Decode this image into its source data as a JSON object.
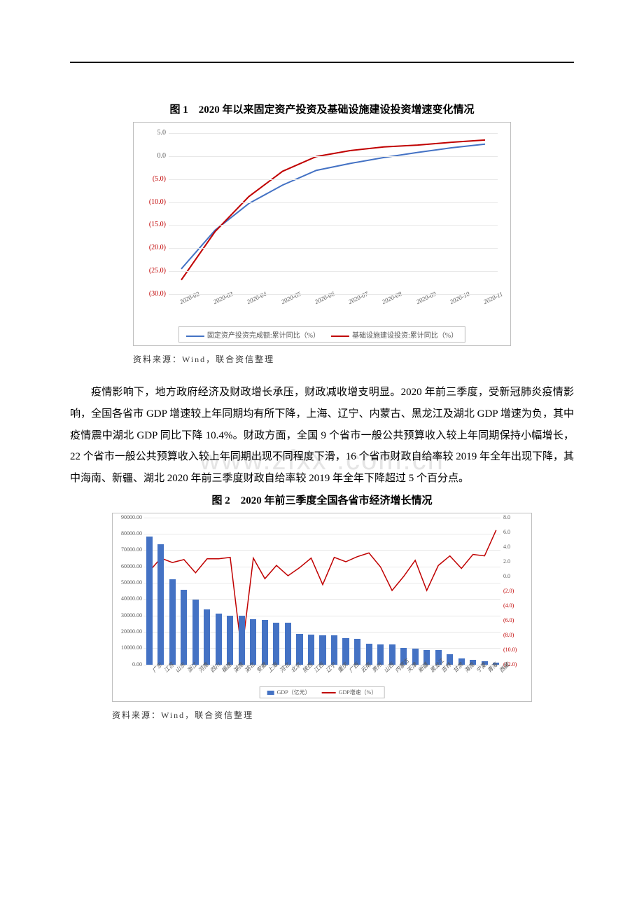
{
  "watermark": "www.zfxx .com.cn",
  "fig1": {
    "title": "图 1　2020 年以来固定资产投资及基础设施建设投资增速变化情况",
    "type": "line",
    "y_ticks": [
      5.0,
      0.0,
      -5.0,
      -10.0,
      -15.0,
      -20.0,
      -25.0,
      -30.0
    ],
    "y_labels": [
      "5.0",
      "0.0",
      "(5.0)",
      "(10.0)",
      "(15.0)",
      "(20.0)",
      "(25.0)",
      "(30.0)"
    ],
    "ylim": [
      -30,
      5
    ],
    "x_labels": [
      "2020-02",
      "2020-03",
      "2020-04",
      "2020-05",
      "2020-06",
      "2020-07",
      "2020-08",
      "2020-09",
      "2020-10",
      "2020-11"
    ],
    "series": [
      {
        "name": "固定资产投资完成额:累计同比（%）",
        "color": "#4472c4",
        "values": [
          -24.5,
          -16.1,
          -10.3,
          -6.3,
          -3.1,
          -1.6,
          -0.3,
          0.8,
          1.8,
          2.6
        ]
      },
      {
        "name": "基础设施建设投资:累计同比（%）",
        "color": "#c00000",
        "values": [
          -26.9,
          -16.4,
          -8.8,
          -3.3,
          -0.1,
          1.2,
          2.0,
          2.4,
          3.0,
          3.5
        ]
      }
    ],
    "source": "资料来源：Wind，联合资信整理",
    "grid_color": "#e8e8e8",
    "border_color": "#bfbfbf"
  },
  "paragraph": "疫情影响下，地方政府经济及财政增长承压，财政减收增支明显。2020 年前三季度，受新冠肺炎疫情影响，全国各省市 GDP 增速较上年同期均有所下降，上海、辽宁、内蒙古、黑龙江及湖北 GDP 增速为负，其中疫情震中湖北 GDP 同比下降 10.4%。财政方面，全国 9 个省市一般公共预算收入较上年同期保持小幅增长，22 个省市一般公共预算收入较上年同期出现不同程度下滑，16 个省市财政自给率较 2019 年全年出现下降，其中海南、新疆、湖北 2020 年前三季度财政自给率较 2019 年全年下降超过 5 个百分点。",
  "fig2": {
    "title": "图 2　2020 年前三季度全国各省市经济增长情况",
    "type": "bar_line",
    "provinces": [
      "广东",
      "江苏",
      "山东",
      "浙江",
      "河南",
      "四川",
      "福建",
      "湖南",
      "湖北",
      "安徽",
      "上海",
      "河北",
      "北京",
      "陕西",
      "江西",
      "辽宁",
      "重庆",
      "广西",
      "云南",
      "贵州",
      "山西",
      "内蒙古",
      "天津",
      "新疆",
      "黑龙江",
      "吉林",
      "甘肃",
      "海南",
      "宁夏",
      "青海",
      "西藏"
    ],
    "gdp": [
      78398,
      73809,
      52186,
      45827,
      39876,
      33892,
      31340,
      29781,
      29779,
      27668,
      27302,
      25805,
      25760,
      18682,
      18388,
      17709,
      17707,
      15999,
      15618,
      12650,
      12500,
      12320,
      10096,
      9820,
      8970,
      8800,
      6450,
      3842,
      2797,
      2170,
      1308
    ],
    "growth": [
      0.7,
      2.5,
      1.9,
      2.3,
      0.5,
      2.4,
      2.4,
      2.6,
      -10.4,
      2.5,
      -0.3,
      1.5,
      0.1,
      1.2,
      2.5,
      -1.1,
      2.6,
      2.0,
      2.7,
      3.2,
      1.3,
      -1.9,
      0.0,
      2.2,
      -1.9,
      1.5,
      2.8,
      1.1,
      3.0,
      2.8,
      6.3
    ],
    "y_left_ticks": [
      90000,
      80000,
      70000,
      60000,
      50000,
      40000,
      30000,
      20000,
      10000,
      0
    ],
    "y_left_labels": [
      "90000.00",
      "80000.00",
      "70000.00",
      "60000.00",
      "50000.00",
      "40000.00",
      "30000.00",
      "20000.00",
      "10000.00",
      "0.00"
    ],
    "y_right_ticks": [
      8,
      6,
      4,
      2,
      0,
      -2,
      -4,
      -6,
      -8,
      -10,
      -12
    ],
    "y_right_labels": [
      "8.0",
      "6.0",
      "4.0",
      "2.0",
      "0.0",
      "(2.0)",
      "(4.0)",
      "(6.0)",
      "(8.0)",
      "(10.0)",
      "(12.0)"
    ],
    "bar_color": "#4472c4",
    "line_color": "#c00000",
    "legend_bar": "GDP（亿元）",
    "legend_line": "GDP增速（%）",
    "source": "资料来源：Wind，联合资信整理",
    "ylim_left": [
      0,
      90000
    ],
    "ylim_right": [
      -12,
      8
    ]
  }
}
